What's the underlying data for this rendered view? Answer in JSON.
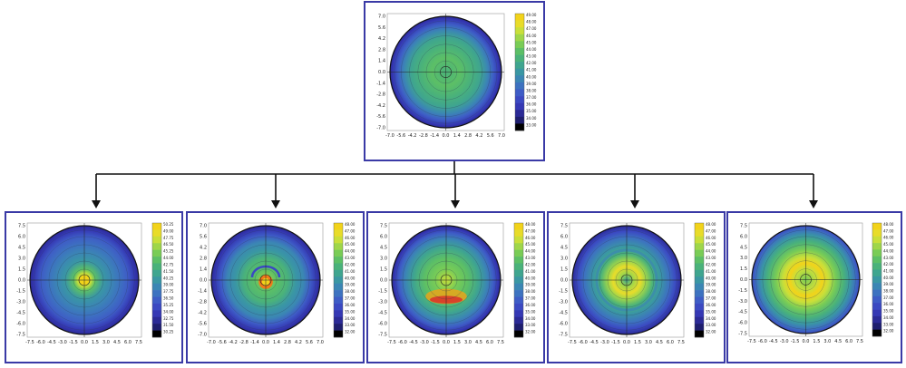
{
  "diagram": {
    "type": "tree",
    "description_edges": "root map branches into five child maps"
  },
  "maps": [
    {
      "id": "root",
      "pattern": "central",
      "colorbar_labels": [
        "49.00",
        "48.00",
        "47.00",
        "46.00",
        "45.00",
        "44.00",
        "43.00",
        "42.00",
        "41.00",
        "40.00",
        "39.00",
        "38.00",
        "37.00",
        "36.00",
        "35.00",
        "34.00",
        "33.00"
      ],
      "x_ticks": [
        "-7.0",
        "-5.6",
        "-4.2",
        "-2.8",
        "-1.4",
        "0.0",
        "1.4",
        "2.8",
        "4.2",
        "5.6",
        "7.0"
      ],
      "y_ticks": [
        "7.0",
        "5.6",
        "4.2",
        "2.8",
        "1.4",
        "0.0",
        "-1.4",
        "-2.8",
        "-4.2",
        "-5.6",
        "-7.0"
      ]
    },
    {
      "id": "child-1",
      "pattern": "focal-center",
      "colorbar_labels": [
        "50.25",
        "49.00",
        "47.75",
        "46.50",
        "45.25",
        "44.00",
        "42.75",
        "41.50",
        "40.25",
        "39.00",
        "37.75",
        "36.50",
        "35.25",
        "34.00",
        "32.75",
        "31.50",
        "30.25"
      ],
      "x_ticks": [
        "-7.5",
        "-6.0",
        "-4.5",
        "-3.0",
        "-1.5",
        "0.0",
        "1.5",
        "3.0",
        "4.5",
        "6.0",
        "7.5"
      ],
      "y_ticks": [
        "7.5",
        "6.0",
        "4.5",
        "3.0",
        "1.5",
        "0.0",
        "-1.5",
        "-3.0",
        "-4.5",
        "-6.0",
        "-7.5"
      ]
    },
    {
      "id": "child-2",
      "pattern": "focal-red-center",
      "colorbar_labels": [
        "48.00",
        "47.00",
        "46.00",
        "45.00",
        "44.00",
        "43.00",
        "42.00",
        "41.00",
        "40.00",
        "39.00",
        "38.00",
        "37.00",
        "36.00",
        "35.00",
        "34.00",
        "33.00",
        "32.00"
      ],
      "x_ticks": [
        "-7.0",
        "-5.6",
        "-4.2",
        "-2.8",
        "-1.4",
        "0.0",
        "1.4",
        "2.8",
        "4.2",
        "5.6",
        "7.0"
      ],
      "y_ticks": [
        "7.0",
        "5.6",
        "4.2",
        "2.8",
        "1.4",
        "0.0",
        "-1.4",
        "-2.8",
        "-4.2",
        "-5.6",
        "-7.0"
      ]
    },
    {
      "id": "child-3",
      "pattern": "inferior-steep",
      "colorbar_labels": [
        "48.00",
        "47.00",
        "46.00",
        "45.00",
        "44.00",
        "43.00",
        "42.00",
        "41.00",
        "40.00",
        "39.00",
        "38.00",
        "37.00",
        "36.00",
        "35.00",
        "34.00",
        "33.00",
        "32.00"
      ],
      "x_ticks": [
        "-7.5",
        "-6.0",
        "-4.5",
        "-3.0",
        "-1.5",
        "0.0",
        "1.5",
        "3.0",
        "4.5",
        "6.0",
        "7.5"
      ],
      "y_ticks": [
        "7.5",
        "6.0",
        "4.5",
        "3.0",
        "1.5",
        "0.0",
        "-1.5",
        "-3.0",
        "-4.5",
        "-6.0",
        "-7.5"
      ]
    },
    {
      "id": "child-4",
      "pattern": "ring",
      "colorbar_labels": [
        "48.00",
        "47.00",
        "46.00",
        "45.00",
        "44.00",
        "43.00",
        "42.00",
        "41.00",
        "40.00",
        "39.00",
        "38.00",
        "37.00",
        "36.00",
        "35.00",
        "34.00",
        "33.00",
        "32.00"
      ],
      "x_ticks": [
        "-7.5",
        "-6.0",
        "-4.5",
        "-3.0",
        "-1.5",
        "0.0",
        "1.5",
        "3.0",
        "4.5",
        "6.0",
        "7.5"
      ],
      "y_ticks": [
        "7.5",
        "6.0",
        "4.5",
        "3.0",
        "1.5",
        "0.0",
        "-1.5",
        "-3.0",
        "-4.5",
        "-6.0",
        "-7.5"
      ]
    },
    {
      "id": "child-5",
      "pattern": "yellow-ring",
      "colorbar_labels": [
        "48.00",
        "47.00",
        "46.00",
        "45.00",
        "44.00",
        "43.00",
        "42.00",
        "41.00",
        "40.00",
        "39.00",
        "38.00",
        "37.00",
        "36.00",
        "35.00",
        "34.00",
        "33.00",
        "32.00"
      ],
      "x_ticks": [
        "-7.5",
        "-6.0",
        "-4.5",
        "-3.0",
        "-1.5",
        "0.0",
        "1.5",
        "3.0",
        "4.5",
        "6.0",
        "7.5"
      ],
      "y_ticks": [
        "7.5",
        "6.0",
        "4.5",
        "3.0",
        "1.5",
        "0.0",
        "-1.5",
        "-3.0",
        "-4.5",
        "-6.0",
        "-7.5"
      ]
    }
  ],
  "colors": {
    "panel_border": "#3a3aa6",
    "connector": "#111111",
    "scale": [
      "#f2d31a",
      "#e8dc2a",
      "#c9df3a",
      "#9fd64a",
      "#79cc56",
      "#5cbf66",
      "#4ab27a",
      "#3fa58f",
      "#3a97a3",
      "#3b86b4",
      "#3d72c0",
      "#3e5cc6",
      "#3b49c2",
      "#3538b4",
      "#2b2a96",
      "#1e1e6e",
      "#000000"
    ]
  }
}
